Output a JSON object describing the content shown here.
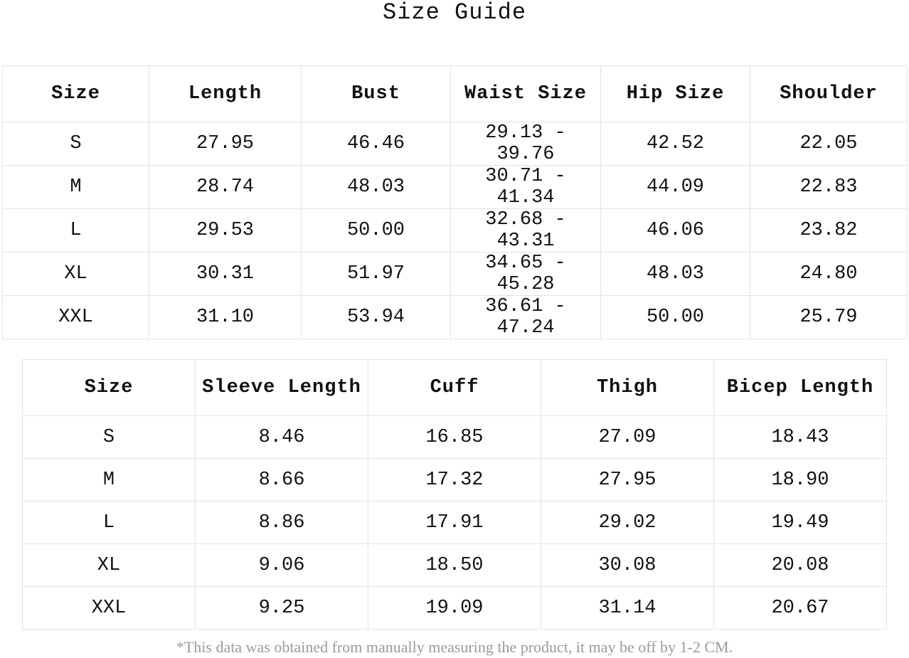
{
  "title": "Size Guide",
  "table1": {
    "headers": [
      "Size",
      "Length",
      "Bust",
      "Waist Size",
      "Hip Size",
      "Shoulder"
    ],
    "rows": [
      [
        "S",
        "27.95",
        "46.46",
        "29.13 - 39.76",
        "42.52",
        "22.05"
      ],
      [
        "M",
        "28.74",
        "48.03",
        "30.71 - 41.34",
        "44.09",
        "22.83"
      ],
      [
        "L",
        "29.53",
        "50.00",
        "32.68 - 43.31",
        "46.06",
        "23.82"
      ],
      [
        "XL",
        "30.31",
        "51.97",
        "34.65 - 45.28",
        "48.03",
        "24.80"
      ],
      [
        "XXL",
        "31.10",
        "53.94",
        "36.61 - 47.24",
        "50.00",
        "25.79"
      ]
    ]
  },
  "table2": {
    "headers": [
      "Size",
      "Sleeve Length",
      "Cuff",
      "Thigh",
      "Bicep Length"
    ],
    "rows": [
      [
        "S",
        "8.46",
        "16.85",
        "27.09",
        "18.43"
      ],
      [
        "M",
        "8.66",
        "17.32",
        "27.95",
        "18.90"
      ],
      [
        "L",
        "8.86",
        "17.91",
        "29.02",
        "19.49"
      ],
      [
        "XL",
        "9.06",
        "18.50",
        "30.08",
        "20.08"
      ],
      [
        "XXL",
        "9.25",
        "19.09",
        "31.14",
        "20.67"
      ]
    ]
  },
  "footnote": "*This data was obtained from manually measuring the product, it may be off by 1-2 CM."
}
